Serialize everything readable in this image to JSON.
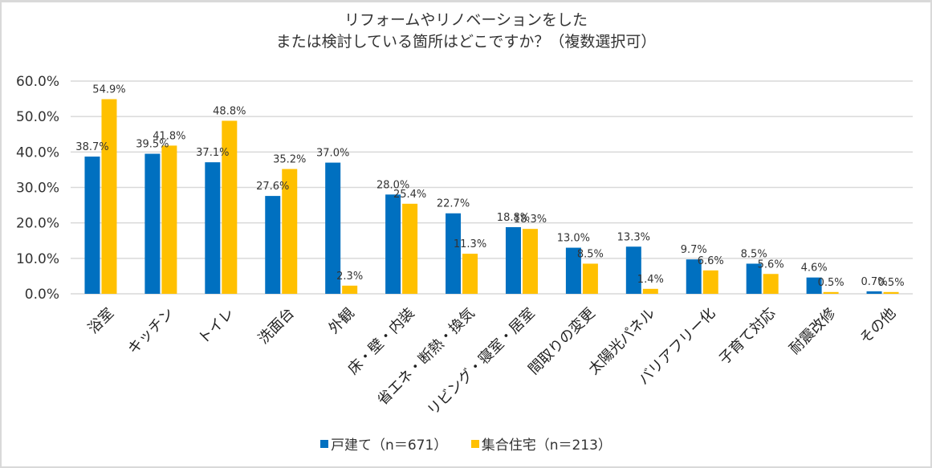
{
  "chart_data": {
    "type": "bar",
    "title_lines": [
      "リフォームやリノベーションをした",
      "または検討している箇所はどこですか？（複数選択可）"
    ],
    "categories": [
      "浴室",
      "キッチン",
      "トイレ",
      "洗面台",
      "外観",
      "床・壁・内装",
      "省エネ・断熱・換気",
      "リビング・寝室・居室",
      "間取りの変更",
      "太陽光パネル",
      "バリアフリー化",
      "子育て対応",
      "耐震改修",
      "その他"
    ],
    "series": [
      {
        "name": "戸建て（n＝671）",
        "color": "#0070c0",
        "values": [
          38.7,
          39.5,
          37.1,
          27.6,
          37.0,
          28.0,
          22.7,
          18.8,
          13.0,
          13.3,
          9.7,
          8.5,
          4.6,
          0.7
        ]
      },
      {
        "name": "集合住宅（n＝213）",
        "color": "#ffc000",
        "values": [
          54.9,
          41.8,
          48.8,
          35.2,
          2.3,
          25.4,
          11.3,
          18.3,
          8.5,
          1.4,
          6.6,
          5.6,
          0.5,
          0.5
        ]
      }
    ],
    "xlabel": "",
    "ylabel": "",
    "ylim": [
      0,
      60
    ],
    "yticks": [
      0,
      10,
      20,
      30,
      40,
      50,
      60
    ],
    "ytick_labels": [
      "0.0%",
      "10.0%",
      "20.0%",
      "30.0%",
      "40.0%",
      "50.0%",
      "60.0%"
    ],
    "value_suffix": "%",
    "grid": true,
    "legend_position": "bottom"
  }
}
